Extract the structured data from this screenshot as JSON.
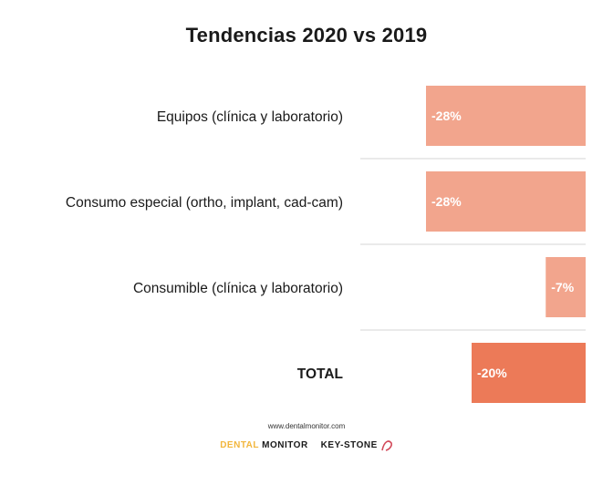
{
  "chart_data": {
    "type": "bar",
    "orientation": "horizontal",
    "title": "Tendencias 2020 vs 2019",
    "categories": [
      "Equipos (clínica y laboratorio)",
      "Consumo especial (ortho, implant, cad-cam)",
      "Consumible (clínica y laboratorio)",
      "TOTAL"
    ],
    "values": [
      -28,
      -28,
      -7,
      -20
    ],
    "value_labels": [
      "-28%",
      "-28%",
      "-7%",
      "-20%"
    ],
    "unit": "%",
    "xlabel": "",
    "ylabel": "",
    "grid": false,
    "legend": "none",
    "colors": {
      "bar": "#f2a58d",
      "bar_total": "#ec7a58",
      "separator": "#e4e4e4"
    }
  },
  "footer": {
    "source_url": "www.dentalmonitor.com",
    "logo_dental_monitor_text": "DENTAL MONITOR",
    "logo_keystone_text": "KEY-STONE"
  }
}
